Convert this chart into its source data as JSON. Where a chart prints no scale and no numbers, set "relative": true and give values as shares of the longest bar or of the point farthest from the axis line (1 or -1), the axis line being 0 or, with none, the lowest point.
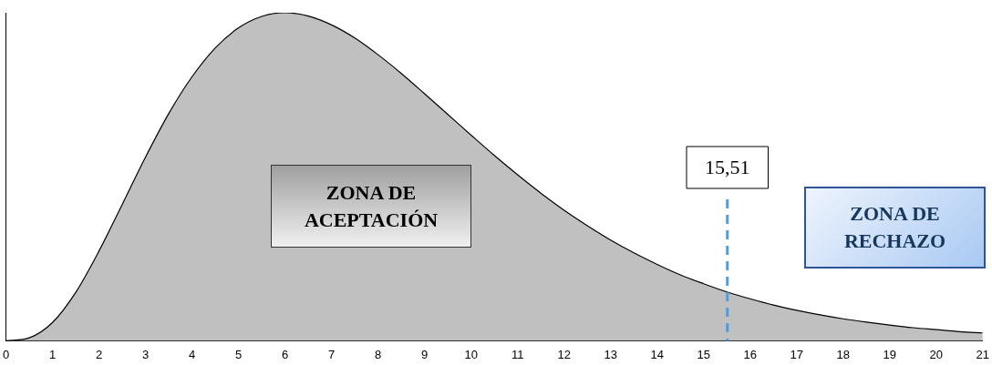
{
  "chart_data": {
    "type": "area",
    "relative": true,
    "color": "#c0c0c0",
    "x": [
      0,
      0.5,
      1,
      1.5,
      2,
      2.5,
      3,
      3.5,
      4,
      4.5,
      5,
      5.5,
      6,
      6.5,
      7,
      7.5,
      8,
      8.5,
      9,
      9.5,
      10,
      10.5,
      11,
      11.5,
      12,
      12.5,
      13,
      13.5,
      14,
      14.5,
      15,
      15.5,
      16,
      16.5,
      17,
      17.5,
      18,
      18.5,
      19,
      19.5,
      20,
      20.5,
      21
    ],
    "values": [
      0,
      0.009,
      0.056,
      0.148,
      0.274,
      0.416,
      0.56,
      0.693,
      0.805,
      0.893,
      0.954,
      0.989,
      1,
      0.99,
      0.963,
      0.923,
      0.872,
      0.815,
      0.753,
      0.69,
      0.627,
      0.565,
      0.506,
      0.45,
      0.398,
      0.351,
      0.307,
      0.268,
      0.233,
      0.201,
      0.174,
      0.149,
      0.128,
      0.109,
      0.093,
      0.079,
      0.067,
      0.057,
      0.048,
      0.04,
      0.034,
      0.028,
      0.024
    ],
    "xlim": [
      0,
      21
    ],
    "xticks": [
      0,
      1,
      2,
      3,
      4,
      5,
      6,
      7,
      8,
      9,
      10,
      11,
      12,
      13,
      14,
      15,
      16,
      17,
      18,
      19,
      20,
      21
    ],
    "ref_lines": [
      {
        "axis": "x",
        "value": 15.51,
        "label": "15,51",
        "color": "#5b9bd5",
        "line_style": "dashed"
      }
    ],
    "annotations": [
      "ZONA DE ACEPTACIÓN",
      "ZONA DE RECHAZO"
    ],
    "grid": false,
    "legend": false
  }
}
